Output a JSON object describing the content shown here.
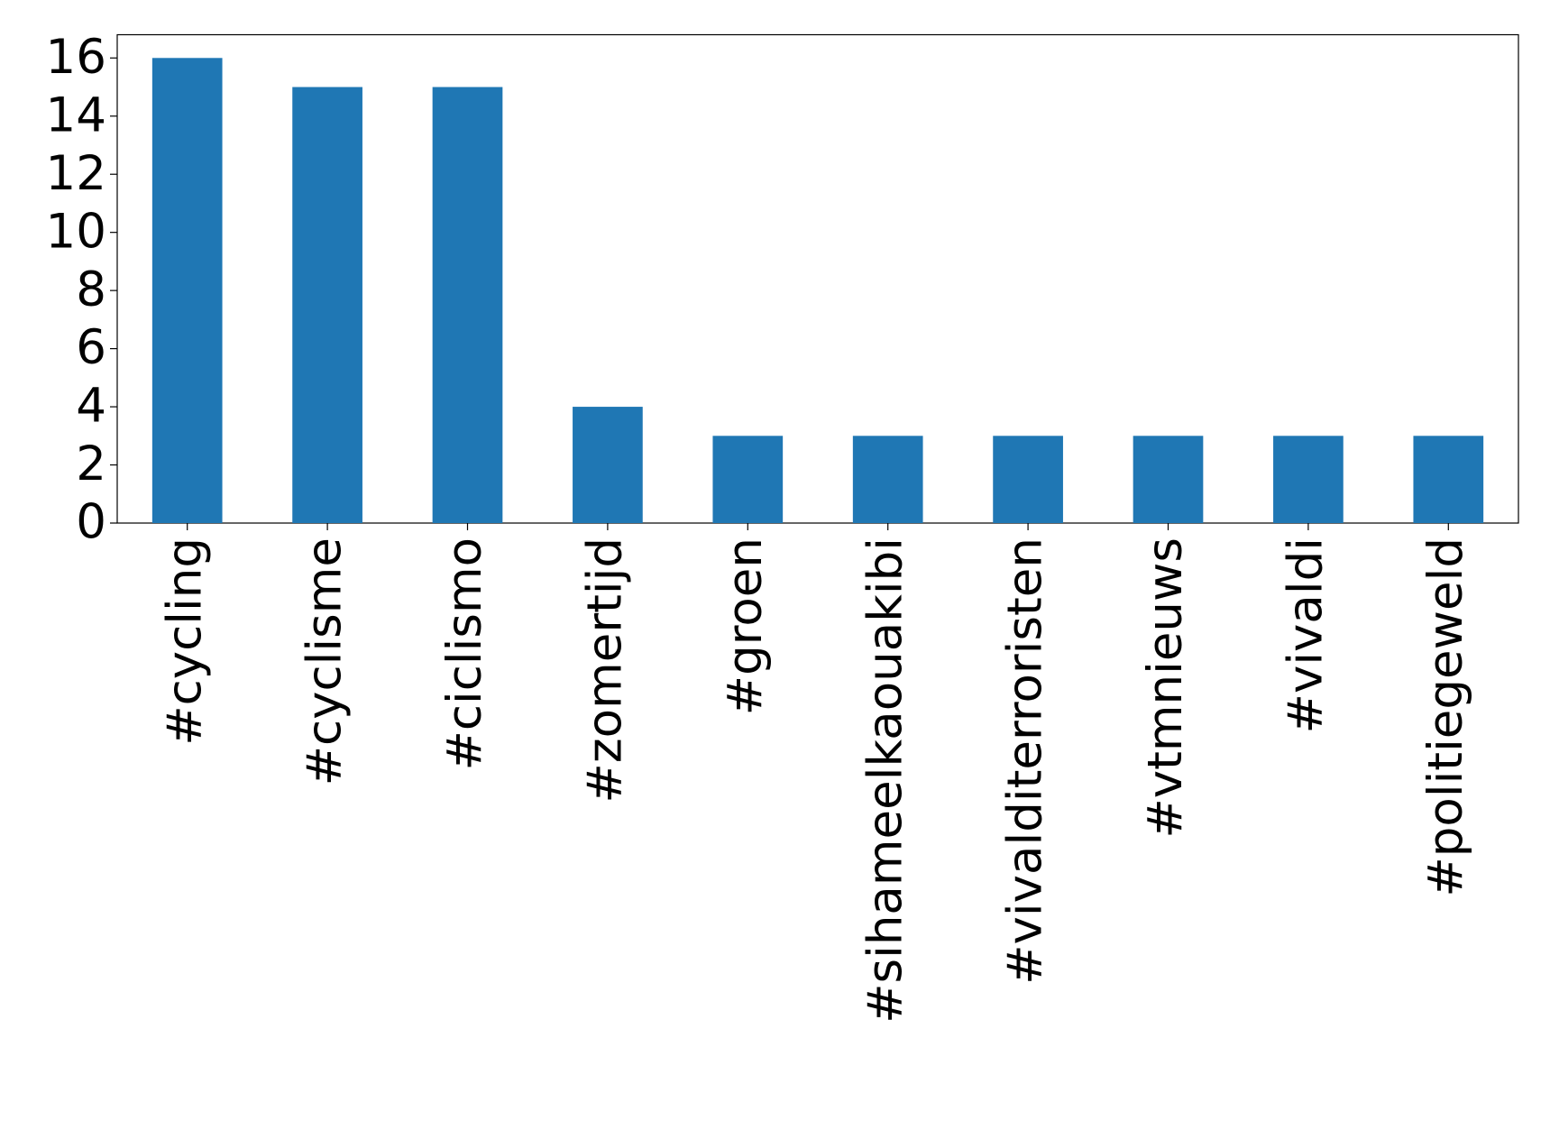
{
  "chart_data": {
    "type": "bar",
    "categories": [
      "#cycling",
      "#cyclisme",
      "#ciclismo",
      "#zomertijd",
      "#groen",
      "#sihameelkaouakibi",
      "#vivalditerroristen",
      "#vtmnieuws",
      "#vivaldi",
      "#politiegeweld"
    ],
    "values": [
      16,
      15,
      15,
      4,
      3,
      3,
      3,
      3,
      3,
      3
    ],
    "color": "#1f77b4",
    "ylim": [
      0,
      16.8
    ],
    "yticks": [
      0,
      2,
      4,
      6,
      8,
      10,
      12,
      14,
      16
    ],
    "grid": false
  }
}
